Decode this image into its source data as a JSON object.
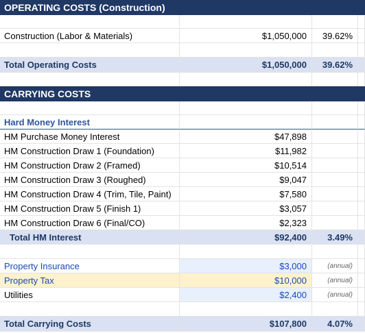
{
  "operating_costs": {
    "title": "OPERATING COSTS  (Construction)",
    "items": [
      {
        "label": "Construction (Labor & Materials)",
        "amount": "$1,050,000",
        "percent": "39.62%"
      }
    ],
    "total": {
      "label": "Total Operating Costs",
      "amount": "$1,050,000",
      "percent": "39.62%"
    }
  },
  "carrying_costs": {
    "title": "CARRYING COSTS",
    "hard_money_interest": {
      "heading": "Hard Money Interest",
      "items": [
        {
          "label": "HM Purchase Money Interest",
          "amount": "$47,898"
        },
        {
          "label": "HM Construction Draw 1 (Foundation)",
          "amount": "$11,982"
        },
        {
          "label": "HM Construction Draw 2 (Framed)",
          "amount": "$10,514"
        },
        {
          "label": "HM Construction Draw 3 (Roughed)",
          "amount": "$9,047"
        },
        {
          "label": "HM Construction Draw 4 (Trim, Tile, Paint)",
          "amount": "$7,580"
        },
        {
          "label": "HM Construction Draw 5 (Finish 1)",
          "amount": "$3,057"
        },
        {
          "label": "HM Construction Draw 6 (Final/CO)",
          "amount": "$2,323"
        }
      ],
      "total": {
        "label": "Total HM Interest",
        "amount": "$92,400",
        "percent": "3.49%"
      }
    },
    "other": [
      {
        "label": "Property Insurance",
        "amount": "$3,000",
        "note": "(annual)"
      },
      {
        "label": "Property Tax",
        "amount": "$10,000",
        "note": "(annual)"
      },
      {
        "label": "Utilities",
        "amount": "$2,400",
        "note": "(annual)"
      }
    ],
    "total": {
      "label": "Total Carrying Costs",
      "amount": "$107,800",
      "percent": "4.07%"
    }
  }
}
